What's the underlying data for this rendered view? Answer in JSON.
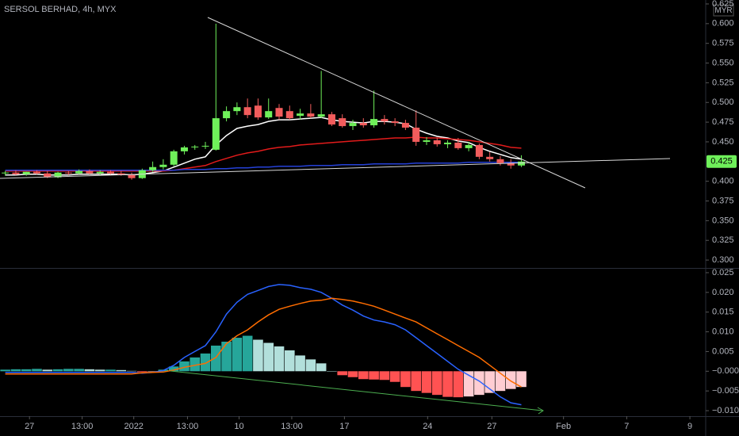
{
  "chart_data": [
    {
      "type": "candlestick",
      "title": "SERSOL BERHAD, 4h, MYX",
      "currency": "MYR",
      "up_color": "#6ff05a",
      "down_color": "#f25c5c",
      "open": [
        0.41,
        0.411,
        0.409,
        0.412,
        0.41,
        0.405,
        0.411,
        0.41,
        0.413,
        0.41,
        0.412,
        0.41,
        0.408,
        0.404,
        0.414,
        0.418,
        0.421,
        0.438,
        0.443,
        0.444,
        0.44,
        0.48,
        0.489,
        0.494,
        0.496,
        0.481,
        0.493,
        0.489,
        0.483,
        0.486,
        0.482,
        0.485,
        0.48,
        0.47,
        0.474,
        0.471,
        0.479,
        0.476,
        0.474,
        0.468,
        0.45,
        0.452,
        0.447,
        0.449,
        0.442,
        0.446,
        0.431,
        0.428,
        0.423,
        0.42
      ],
      "high": [
        0.413,
        0.414,
        0.412,
        0.414,
        0.413,
        0.412,
        0.413,
        0.415,
        0.415,
        0.414,
        0.414,
        0.413,
        0.411,
        0.416,
        0.425,
        0.428,
        0.44,
        0.445,
        0.446,
        0.45,
        0.6,
        0.495,
        0.5,
        0.505,
        0.505,
        0.505,
        0.498,
        0.496,
        0.492,
        0.498,
        0.54,
        0.488,
        0.485,
        0.478,
        0.48,
        0.515,
        0.484,
        0.48,
        0.478,
        0.49,
        0.456,
        0.455,
        0.452,
        0.455,
        0.45,
        0.448,
        0.437,
        0.432,
        0.428,
        0.433
      ],
      "low": [
        0.407,
        0.408,
        0.407,
        0.409,
        0.404,
        0.404,
        0.408,
        0.409,
        0.409,
        0.408,
        0.409,
        0.407,
        0.402,
        0.403,
        0.412,
        0.415,
        0.419,
        0.434,
        0.44,
        0.441,
        0.439,
        0.476,
        0.484,
        0.48,
        0.478,
        0.479,
        0.478,
        0.478,
        0.478,
        0.48,
        0.48,
        0.47,
        0.468,
        0.465,
        0.468,
        0.468,
        0.472,
        0.47,
        0.465,
        0.445,
        0.446,
        0.444,
        0.442,
        0.44,
        0.438,
        0.428,
        0.425,
        0.42,
        0.416,
        0.418
      ],
      "close": [
        0.411,
        0.409,
        0.412,
        0.41,
        0.405,
        0.411,
        0.41,
        0.413,
        0.41,
        0.412,
        0.41,
        0.408,
        0.404,
        0.414,
        0.418,
        0.421,
        0.438,
        0.443,
        0.444,
        0.445,
        0.48,
        0.489,
        0.494,
        0.484,
        0.481,
        0.489,
        0.482,
        0.48,
        0.486,
        0.482,
        0.485,
        0.472,
        0.47,
        0.474,
        0.471,
        0.479,
        0.476,
        0.474,
        0.468,
        0.45,
        0.452,
        0.447,
        0.449,
        0.442,
        0.446,
        0.431,
        0.428,
        0.423,
        0.42,
        0.425
      ],
      "series": [
        {
          "color": "#ffffff",
          "values": [
            0.408,
            0.408,
            0.409,
            0.409,
            0.408,
            0.408,
            0.408,
            0.409,
            0.409,
            0.409,
            0.409,
            0.409,
            0.408,
            0.409,
            0.411,
            0.413,
            0.418,
            0.423,
            0.428,
            0.431,
            0.446,
            0.458,
            0.467,
            0.47,
            0.472,
            0.476,
            0.478,
            0.478,
            0.479,
            0.48,
            0.481,
            0.478,
            0.476,
            0.475,
            0.474,
            0.476,
            0.476,
            0.475,
            0.473,
            0.466,
            0.461,
            0.457,
            0.455,
            0.451,
            0.449,
            0.443,
            0.438,
            0.434,
            0.43,
            0.428
          ]
        },
        {
          "color": "#e21b1b",
          "values": [
            0.413,
            0.413,
            0.413,
            0.413,
            0.413,
            0.413,
            0.413,
            0.413,
            0.413,
            0.413,
            0.413,
            0.413,
            0.413,
            0.413,
            0.413,
            0.413,
            0.414,
            0.416,
            0.418,
            0.42,
            0.425,
            0.429,
            0.433,
            0.436,
            0.438,
            0.441,
            0.443,
            0.444,
            0.446,
            0.447,
            0.448,
            0.449,
            0.45,
            0.451,
            0.452,
            0.453,
            0.454,
            0.455,
            0.455,
            0.456,
            0.455,
            0.455,
            0.454,
            0.453,
            0.452,
            0.45,
            0.448,
            0.446,
            0.443,
            0.442
          ]
        },
        {
          "color": "#2541d8",
          "values": [
            0.414,
            0.414,
            0.414,
            0.414,
            0.414,
            0.414,
            0.414,
            0.414,
            0.414,
            0.414,
            0.414,
            0.414,
            0.414,
            0.414,
            0.414,
            0.414,
            0.414,
            0.415,
            0.415,
            0.415,
            0.416,
            0.416,
            0.417,
            0.417,
            0.418,
            0.418,
            0.419,
            0.419,
            0.419,
            0.42,
            0.42,
            0.42,
            0.421,
            0.421,
            0.421,
            0.422,
            0.422,
            0.422,
            0.422,
            0.423,
            0.423,
            0.423,
            0.423,
            0.423,
            0.424,
            0.424,
            0.424,
            0.424,
            0.424,
            0.424
          ]
        }
      ],
      "last_price": {
        "value": 0.425,
        "label": "0.425"
      },
      "xlim": [
        -0.5,
        66.5
      ],
      "ylim": [
        0.29,
        0.63
      ],
      "yticks": [
        {
          "value": 0.625,
          "label": "0.625"
        },
        {
          "value": 0.6,
          "label": "0.600"
        },
        {
          "value": 0.575,
          "label": "0.575"
        },
        {
          "value": 0.55,
          "label": "0.550"
        },
        {
          "value": 0.525,
          "label": "0.525"
        },
        {
          "value": 0.5,
          "label": "0.500"
        },
        {
          "value": 0.475,
          "label": "0.475"
        },
        {
          "value": 0.45,
          "label": "0.450"
        },
        {
          "value": 0.4,
          "label": "0.400"
        },
        {
          "value": 0.375,
          "label": "0.375"
        },
        {
          "value": 0.35,
          "label": "0.350"
        },
        {
          "value": 0.325,
          "label": "0.325"
        },
        {
          "value": 0.3,
          "label": "0.300"
        }
      ]
    },
    {
      "type": "macd",
      "histogram": {
        "colors": [
          "#26a69a",
          "#b2dfdb",
          "#ff5252",
          "#ffcdd2"
        ],
        "values": [
          0.0004,
          0.0005,
          0.0005,
          0.0006,
          0.0004,
          0.0005,
          0.0006,
          0.0006,
          0.0005,
          0.0004,
          0.0004,
          0.0003,
          0.0001,
          -0.0002,
          -0.0001,
          0.0004,
          0.0012,
          0.0025,
          0.0035,
          0.0045,
          0.0065,
          0.0075,
          0.0085,
          0.009,
          0.008,
          0.0072,
          0.0063,
          0.0053,
          0.004,
          0.003,
          0.002,
          0,
          -0.001,
          -0.0015,
          -0.002,
          -0.0021,
          -0.0022,
          -0.0027,
          -0.004,
          -0.005,
          -0.0055,
          -0.006,
          -0.0065,
          -0.0066,
          -0.0064,
          -0.006,
          -0.0055,
          -0.005,
          -0.0045,
          -0.004
        ]
      },
      "series": [
        {
          "color": "#2962ff",
          "values": [
            -0.0003,
            -0.0003,
            -0.0003,
            -0.0003,
            -0.0003,
            -0.0003,
            -0.0003,
            -0.0003,
            -0.0003,
            -0.0003,
            -0.0003,
            -0.0003,
            -0.0003,
            -0.0005,
            -0.0003,
            0.0002,
            0.0015,
            0.0035,
            0.005,
            0.0065,
            0.01,
            0.0145,
            0.0175,
            0.0195,
            0.0205,
            0.0215,
            0.022,
            0.0218,
            0.0212,
            0.0208,
            0.02,
            0.0185,
            0.0168,
            0.0155,
            0.014,
            0.013,
            0.0125,
            0.0118,
            0.0105,
            0.0085,
            0.0065,
            0.0045,
            0.0025,
            0.0005,
            -0.001,
            -0.0025,
            -0.0045,
            -0.0065,
            -0.008,
            -0.0085
          ]
        },
        {
          "color": "#ff6d00",
          "values": [
            -0.0007,
            -0.0007,
            -0.0007,
            -0.0007,
            -0.0007,
            -0.0007,
            -0.0007,
            -0.0007,
            -0.0007,
            -0.0007,
            -0.0007,
            -0.0007,
            -0.0007,
            -0.0004,
            -0.0003,
            -0.0002,
            0.0003,
            0.001,
            0.0015,
            0.002,
            0.0035,
            0.007,
            0.009,
            0.0105,
            0.0125,
            0.0143,
            0.0157,
            0.0165,
            0.0172,
            0.0178,
            0.018,
            0.0185,
            0.0182,
            0.0178,
            0.0172,
            0.0165,
            0.0155,
            0.0145,
            0.0135,
            0.0125,
            0.011,
            0.0095,
            0.008,
            0.0065,
            0.005,
            0.0035,
            0.0015,
            -0.0005,
            -0.0025,
            -0.004
          ]
        }
      ],
      "xlim": [
        -0.5,
        66.5
      ],
      "xticks": [
        {
          "value": 2.3,
          "label": "27"
        },
        {
          "value": 7.3,
          "label": "13:00"
        },
        {
          "value": 12.2,
          "label": "2022"
        },
        {
          "value": 17.3,
          "label": "13:00"
        },
        {
          "value": 22.2,
          "label": "10"
        },
        {
          "value": 27.2,
          "label": "13:00"
        },
        {
          "value": 32.2,
          "label": "17"
        },
        {
          "value": 40.1,
          "label": "24"
        },
        {
          "value": 46.2,
          "label": "27"
        },
        {
          "value": 53.0,
          "label": "Feb"
        },
        {
          "value": 59.0,
          "label": "7"
        },
        {
          "value": 65.0,
          "label": "9"
        }
      ],
      "ylim": [
        -0.0114,
        0.0258
      ],
      "yticks": [
        {
          "value": 0.025,
          "label": "0.025"
        },
        {
          "value": 0.02,
          "label": "0.020"
        },
        {
          "value": 0.015,
          "label": "0.015"
        },
        {
          "value": 0.01,
          "label": "0.010"
        },
        {
          "value": 0.005,
          "label": "0.005"
        },
        {
          "value": 0,
          "label": "−0.000"
        },
        {
          "value": -0.005,
          "label": "−0.005"
        },
        {
          "value": -0.01,
          "label": "−0.010"
        }
      ]
    }
  ]
}
